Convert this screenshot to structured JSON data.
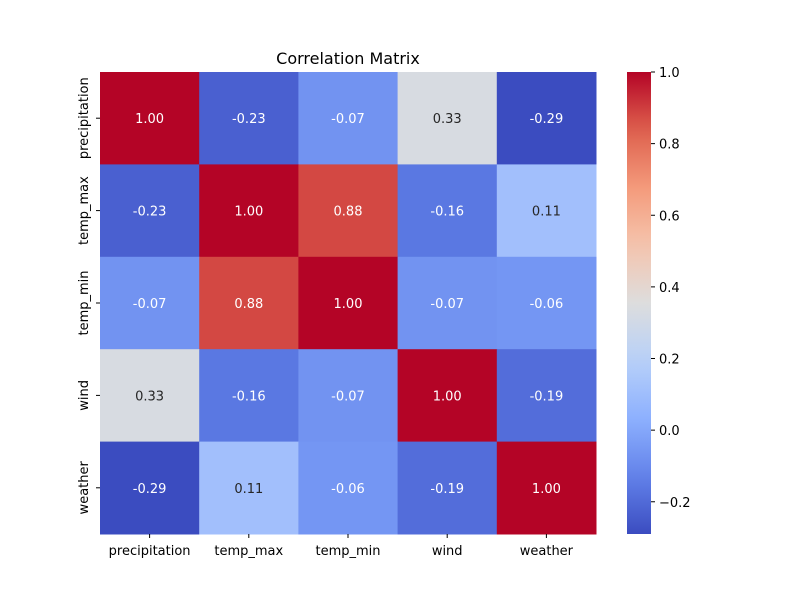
{
  "chart_data": {
    "type": "heatmap",
    "title": "Correlation Matrix",
    "xlabel": "",
    "ylabel": "",
    "x_categories": [
      "precipitation",
      "temp_max",
      "temp_min",
      "wind",
      "weather"
    ],
    "y_categories": [
      "precipitation",
      "temp_max",
      "temp_min",
      "wind",
      "weather"
    ],
    "values": [
      [
        1.0,
        -0.23,
        -0.07,
        0.33,
        -0.29
      ],
      [
        -0.23,
        1.0,
        0.88,
        -0.16,
        0.11
      ],
      [
        -0.07,
        0.88,
        1.0,
        -0.07,
        -0.06
      ],
      [
        0.33,
        -0.16,
        -0.07,
        1.0,
        -0.19
      ],
      [
        -0.29,
        0.11,
        -0.06,
        -0.19,
        1.0
      ]
    ],
    "annotation_format": "0.00",
    "colormap": "coolwarm",
    "colorbar": {
      "range": [
        -0.29,
        1.0
      ],
      "ticks": [
        -0.2,
        0.0,
        0.2,
        0.4,
        0.6,
        0.8,
        1.0
      ],
      "tick_labels": [
        "−0.2",
        "0.0",
        "0.2",
        "0.4",
        "0.6",
        "0.8",
        "1.0"
      ],
      "placement": "right"
    },
    "colors": {
      "low": "#3b4cc0",
      "mid": "#dddddd",
      "high": "#b40426"
    }
  }
}
